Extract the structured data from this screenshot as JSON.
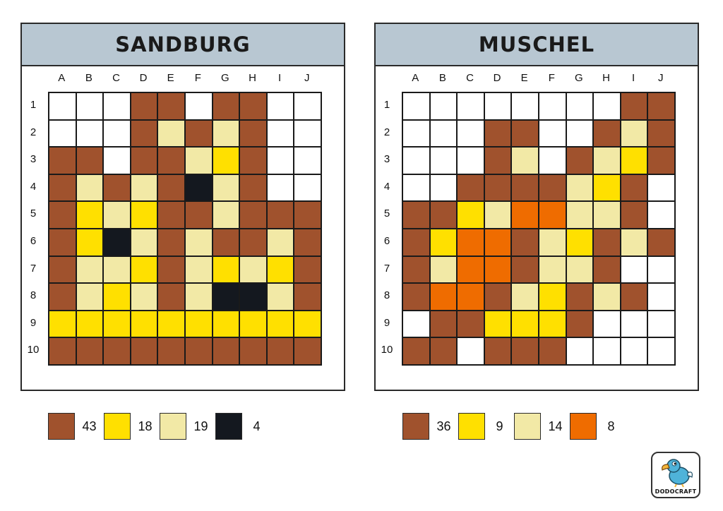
{
  "colors": {
    "B": "#a0522d",
    "Y": "#ffe000",
    "L": "#f2e9a6",
    "K": "#14181f",
    "O": "#ef6c00",
    "W": "#ffffff"
  },
  "columns": [
    "A",
    "B",
    "C",
    "D",
    "E",
    "F",
    "G",
    "H",
    "I",
    "J"
  ],
  "rows": [
    "1",
    "2",
    "3",
    "4",
    "5",
    "6",
    "7",
    "8",
    "9",
    "10"
  ],
  "left": {
    "title": "SANDBURG",
    "grid": [
      "WWWBBWBBWW",
      "WWWBLBLBWW",
      "BBWBBLYBWW",
      "BLBLBKLBWW",
      "BYLYBBLBBB",
      "BYKLBLBBLB",
      "BLLYBLYLYB",
      "BLYLBLKKLB",
      "YYYYYYYYYY",
      "BBBBBBBBBB"
    ],
    "legend": [
      {
        "color": "B",
        "count": "43"
      },
      {
        "color": "Y",
        "count": "18"
      },
      {
        "color": "L",
        "count": "19"
      },
      {
        "color": "K",
        "count": "4"
      }
    ]
  },
  "right": {
    "title": "MUSCHEL",
    "grid": [
      "WWWWWWWWBB",
      "WWWBBWWBLB",
      "WWWBLWBLYB",
      "WWBBBBLYBW",
      "BBYLOOLLBW",
      "BYOOBLYBLB",
      "BLOOBLLBWW",
      "BOOBLYBLBW",
      "WBBYYYBWWW",
      "BBWBBBWWWW"
    ],
    "legend": [
      {
        "color": "B",
        "count": "36"
      },
      {
        "color": "Y",
        "count": "9"
      },
      {
        "color": "L",
        "count": "14"
      },
      {
        "color": "O",
        "count": "8"
      }
    ]
  },
  "logo": {
    "text": "DODOCRAFT",
    "icon": "dodo-bird-icon"
  }
}
